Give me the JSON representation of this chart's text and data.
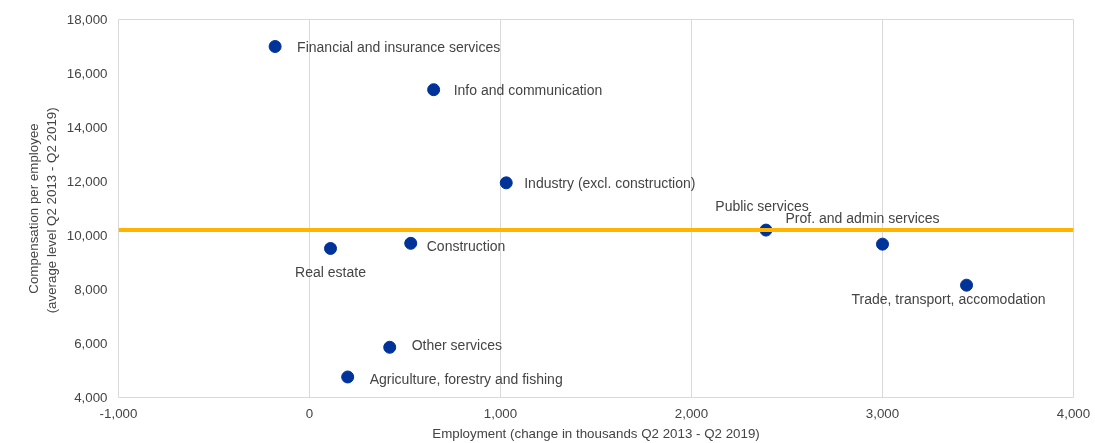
{
  "chart_data": {
    "type": "scatter",
    "xlabel": "Employment (change in thousands Q2 2013 - Q2 2019)",
    "ylabel": "Compensation per employee\n(average level  Q2 2013 - Q2 2019)",
    "x": [
      -180,
      650,
      1030,
      2390,
      3000,
      3440,
      110,
      530,
      420,
      200
    ],
    "series": [
      {
        "color": "#003399",
        "values": [
          17000,
          15400,
          11950,
          10200,
          9680,
          8160,
          9520,
          9710,
          5860,
          4760
        ]
      }
    ],
    "marker": "circle",
    "xlim": [
      -1000,
      4000
    ],
    "xticks": [
      {
        "value": -1000,
        "label": "-1,000"
      },
      0,
      {
        "value": 1000,
        "label": "1,000"
      },
      {
        "value": 2000,
        "label": "2,000"
      },
      {
        "value": 3000,
        "label": "3,000"
      },
      {
        "value": 4000,
        "label": "4,000"
      }
    ],
    "ylim": [
      4000,
      18000
    ],
    "yticks": [
      {
        "value": 4000,
        "label": "4,000"
      },
      {
        "value": 6000,
        "label": "6,000"
      },
      {
        "value": 8000,
        "label": "8,000"
      },
      {
        "value": 10000,
        "label": "10,000"
      },
      {
        "value": 12000,
        "label": "12,000"
      },
      {
        "value": 14000,
        "label": "14,000"
      },
      {
        "value": 16000,
        "label": "16,000"
      },
      {
        "value": 18000,
        "label": "18,000"
      }
    ],
    "grid": "x",
    "ref_lines": [
      {
        "axis": "y",
        "value": 10200,
        "color": "#ffb400"
      }
    ],
    "annotations": [
      {
        "text": "Financial and insurance services",
        "x": -180,
        "y": 17000
      },
      {
        "text": "Info and communication",
        "x": 650,
        "y": 15400
      },
      {
        "text": "Industry (excl. construction)",
        "x": 1030,
        "y": 11950
      },
      {
        "text": "Public services",
        "x": 2390,
        "y": 10200
      },
      {
        "text": "Prof. and admin services",
        "x": 3000,
        "y": 9680
      },
      {
        "text": "Trade, transport, accomodation",
        "x": 3440,
        "y": 8160
      },
      {
        "text": "Real estate",
        "x": 110,
        "y": 9520
      },
      {
        "text": "Construction",
        "x": 530,
        "y": 9710
      },
      {
        "text": "Other services",
        "x": 420,
        "y": 5860
      },
      {
        "text": "Agriculture, forestry and fishing",
        "x": 200,
        "y": 4760
      }
    ]
  }
}
